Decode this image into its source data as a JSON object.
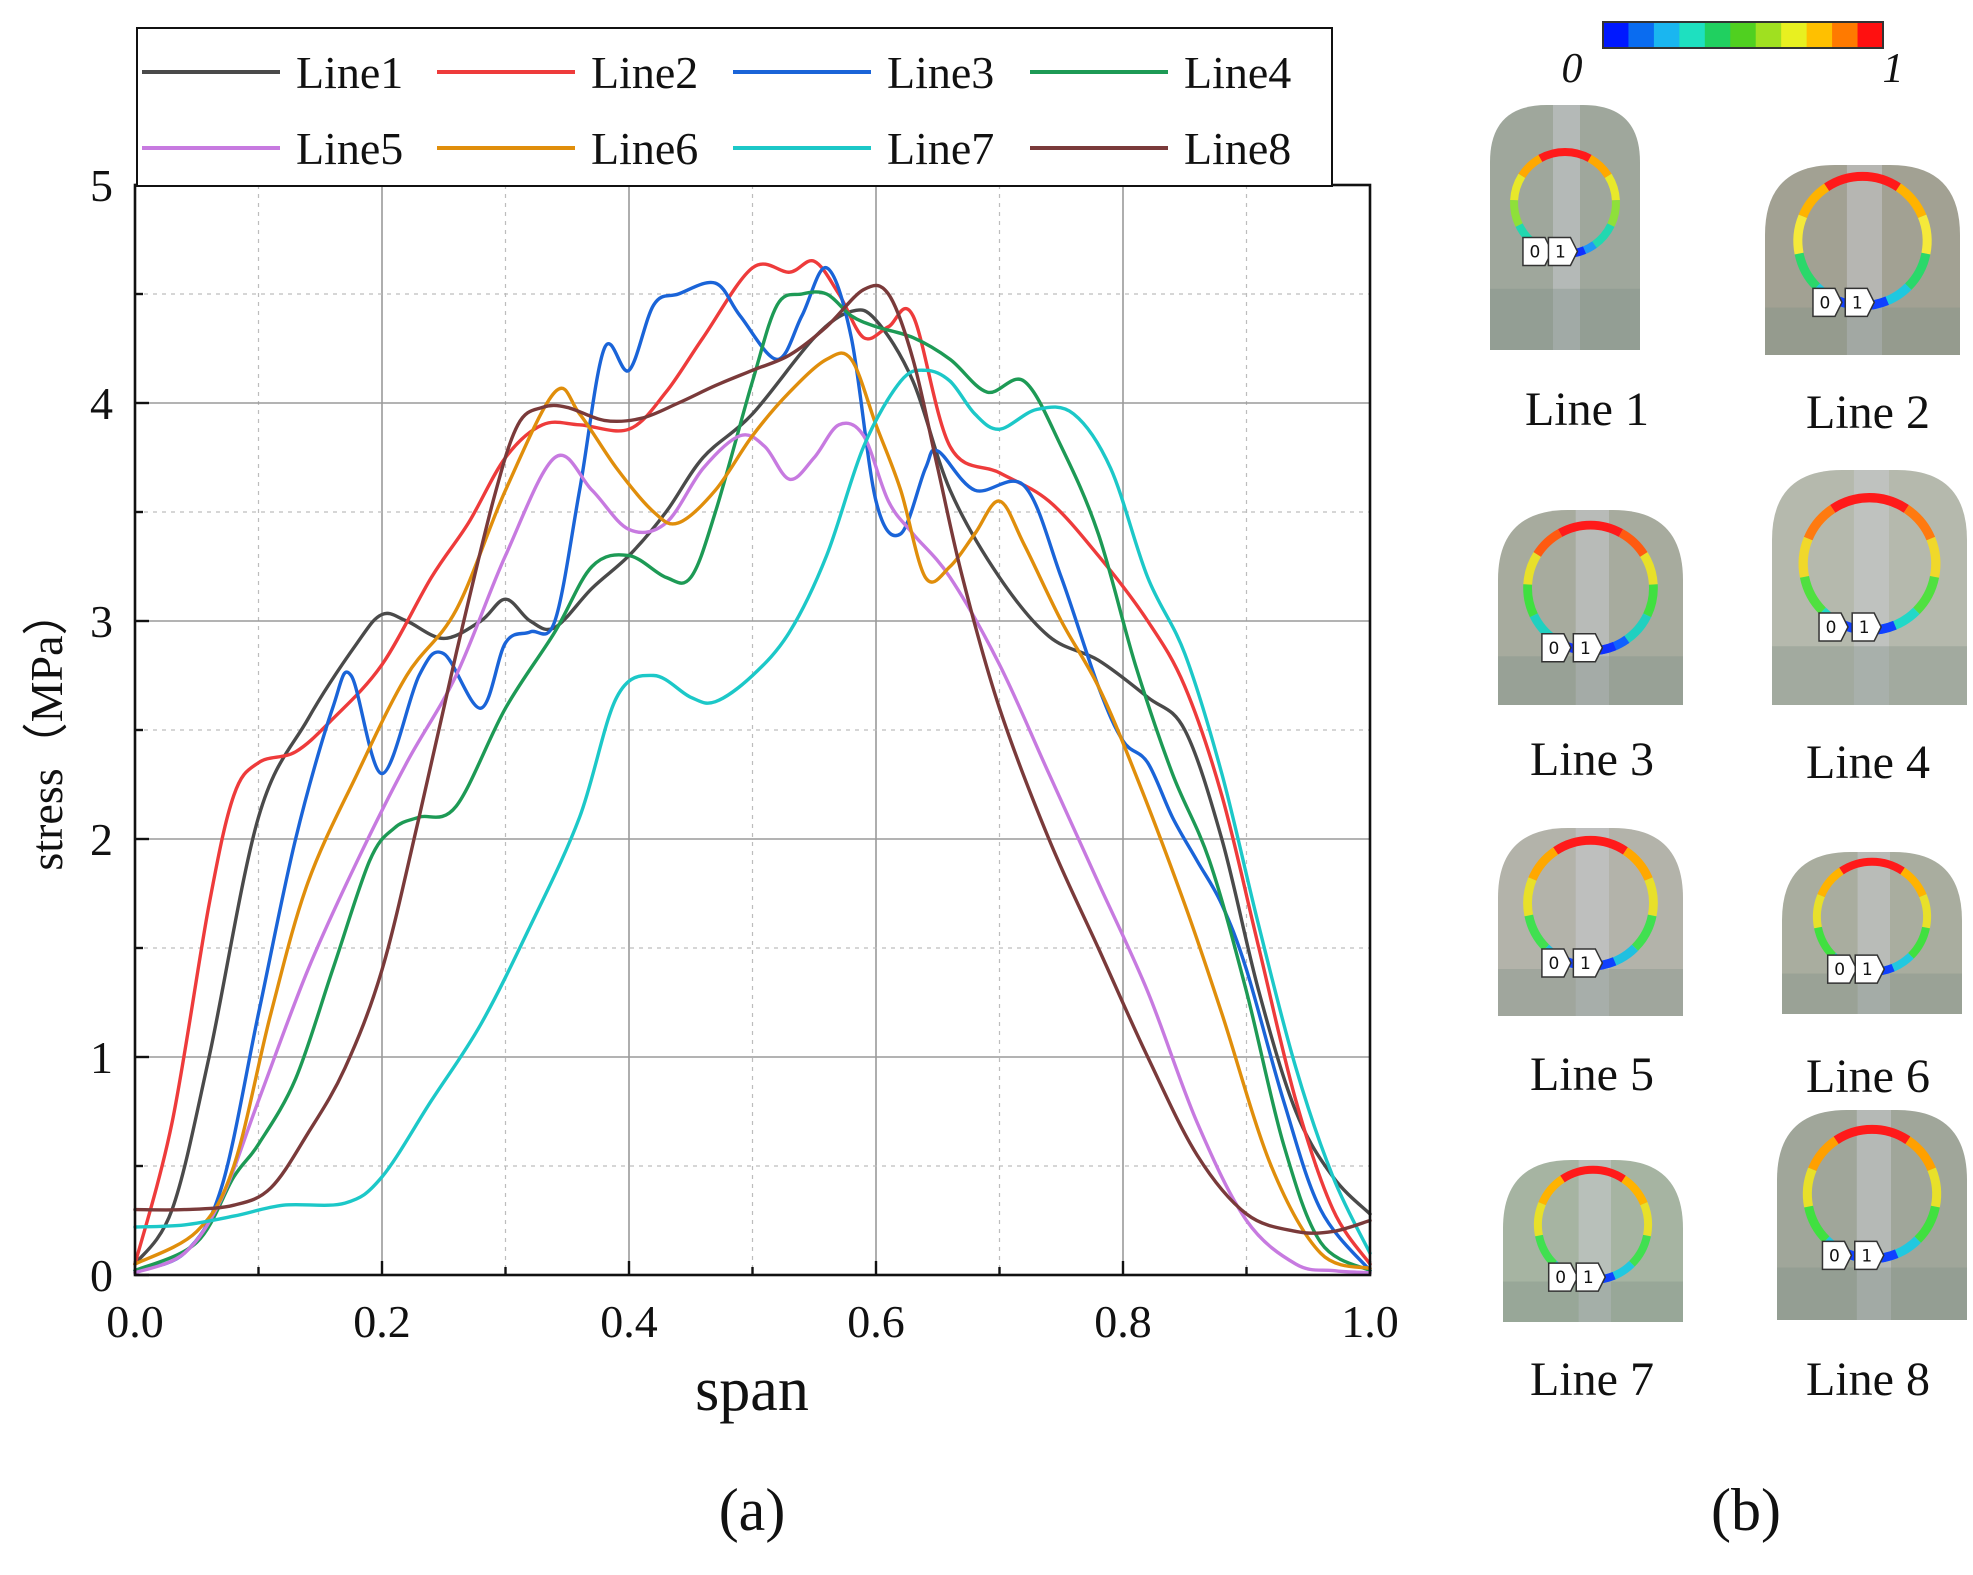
{
  "figure": {
    "panel_a_label": "(a)",
    "panel_b_label": "(b)"
  },
  "chart_data": {
    "type": "line",
    "xlabel": "span",
    "ylabel": "stress（MPa）",
    "xlim": [
      0.0,
      1.0
    ],
    "ylim": [
      0,
      5
    ],
    "xticks": [
      "0.0",
      "0.2",
      "0.4",
      "0.6",
      "0.8",
      "1.0"
    ],
    "yticks": [
      "0",
      "1",
      "2",
      "3",
      "4",
      "5"
    ],
    "grid": true,
    "legend_position": "top",
    "series": [
      {
        "name": "Line1",
        "color": "#4a4a4a",
        "x": [
          0,
          0.03,
          0.06,
          0.1,
          0.14,
          0.18,
          0.2,
          0.22,
          0.25,
          0.28,
          0.3,
          0.32,
          0.34,
          0.37,
          0.4,
          0.43,
          0.46,
          0.5,
          0.55,
          0.58,
          0.6,
          0.63,
          0.66,
          0.7,
          0.74,
          0.78,
          0.82,
          0.85,
          0.88,
          0.91,
          0.94,
          0.97,
          1.0
        ],
        "y": [
          0.05,
          0.3,
          1.0,
          2.1,
          2.55,
          2.9,
          3.03,
          3.0,
          2.92,
          3.0,
          3.1,
          3.0,
          2.97,
          3.15,
          3.3,
          3.5,
          3.75,
          3.95,
          4.3,
          4.42,
          4.38,
          4.1,
          3.6,
          3.2,
          2.93,
          2.82,
          2.65,
          2.5,
          2.0,
          1.3,
          0.75,
          0.45,
          0.28
        ]
      },
      {
        "name": "Line2",
        "color": "#ee3b3b",
        "x": [
          0,
          0.03,
          0.06,
          0.08,
          0.1,
          0.13,
          0.16,
          0.2,
          0.24,
          0.27,
          0.3,
          0.33,
          0.36,
          0.4,
          0.43,
          0.46,
          0.5,
          0.53,
          0.55,
          0.57,
          0.59,
          0.61,
          0.63,
          0.66,
          0.7,
          0.74,
          0.78,
          0.82,
          0.85,
          0.88,
          0.91,
          0.94,
          0.97,
          1.0
        ],
        "y": [
          0.05,
          0.7,
          1.7,
          2.2,
          2.35,
          2.4,
          2.55,
          2.8,
          3.2,
          3.45,
          3.75,
          3.9,
          3.9,
          3.88,
          4.05,
          4.3,
          4.62,
          4.6,
          4.65,
          4.5,
          4.3,
          4.35,
          4.4,
          3.8,
          3.68,
          3.55,
          3.3,
          3.0,
          2.7,
          2.2,
          1.5,
          0.8,
          0.3,
          0.05
        ]
      },
      {
        "name": "Line3",
        "color": "#1a64d8",
        "x": [
          0,
          0.04,
          0.07,
          0.1,
          0.13,
          0.16,
          0.175,
          0.2,
          0.23,
          0.25,
          0.28,
          0.3,
          0.32,
          0.34,
          0.36,
          0.38,
          0.4,
          0.42,
          0.44,
          0.47,
          0.49,
          0.52,
          0.54,
          0.56,
          0.58,
          0.6,
          0.62,
          0.64,
          0.65,
          0.68,
          0.72,
          0.75,
          0.78,
          0.8,
          0.82,
          0.84,
          0.86,
          0.88,
          0.9,
          0.93,
          0.96,
          1.0
        ],
        "y": [
          0.02,
          0.1,
          0.4,
          1.2,
          2.0,
          2.6,
          2.75,
          2.3,
          2.75,
          2.85,
          2.6,
          2.9,
          2.95,
          3.0,
          3.6,
          4.25,
          4.15,
          4.45,
          4.5,
          4.55,
          4.4,
          4.2,
          4.4,
          4.62,
          4.3,
          3.55,
          3.4,
          3.7,
          3.78,
          3.6,
          3.62,
          3.2,
          2.7,
          2.45,
          2.35,
          2.1,
          1.9,
          1.7,
          1.4,
          0.8,
          0.3,
          0.02
        ]
      },
      {
        "name": "Line4",
        "color": "#1d9a55",
        "x": [
          0,
          0.05,
          0.08,
          0.1,
          0.13,
          0.16,
          0.19,
          0.21,
          0.23,
          0.26,
          0.3,
          0.34,
          0.37,
          0.4,
          0.43,
          0.45,
          0.47,
          0.5,
          0.52,
          0.54,
          0.56,
          0.58,
          0.6,
          0.63,
          0.66,
          0.69,
          0.72,
          0.75,
          0.78,
          0.81,
          0.84,
          0.87,
          0.9,
          0.93,
          0.96,
          1.0
        ],
        "y": [
          0.02,
          0.15,
          0.45,
          0.6,
          0.9,
          1.4,
          1.9,
          2.05,
          2.1,
          2.15,
          2.6,
          2.95,
          3.25,
          3.3,
          3.2,
          3.2,
          3.5,
          4.1,
          4.45,
          4.5,
          4.5,
          4.4,
          4.35,
          4.3,
          4.2,
          4.05,
          4.1,
          3.8,
          3.4,
          2.8,
          2.3,
          1.9,
          1.3,
          0.6,
          0.15,
          0.02
        ]
      },
      {
        "name": "Line5",
        "color": "#c77ae0",
        "x": [
          0,
          0.04,
          0.07,
          0.1,
          0.14,
          0.18,
          0.22,
          0.26,
          0.3,
          0.34,
          0.37,
          0.4,
          0.43,
          0.46,
          0.49,
          0.51,
          0.53,
          0.55,
          0.57,
          0.59,
          0.61,
          0.63,
          0.66,
          0.7,
          0.74,
          0.78,
          0.82,
          0.86,
          0.9,
          0.94,
          0.97,
          1.0
        ],
        "y": [
          0.01,
          0.1,
          0.35,
          0.8,
          1.4,
          1.9,
          2.35,
          2.75,
          3.3,
          3.75,
          3.6,
          3.42,
          3.45,
          3.7,
          3.85,
          3.8,
          3.65,
          3.75,
          3.9,
          3.85,
          3.55,
          3.4,
          3.2,
          2.8,
          2.3,
          1.8,
          1.3,
          0.7,
          0.25,
          0.05,
          0.02,
          0.01
        ]
      },
      {
        "name": "Line6",
        "color": "#e08e0b",
        "x": [
          0,
          0.05,
          0.08,
          0.11,
          0.14,
          0.18,
          0.22,
          0.26,
          0.3,
          0.34,
          0.36,
          0.39,
          0.42,
          0.44,
          0.47,
          0.5,
          0.53,
          0.56,
          0.58,
          0.6,
          0.62,
          0.64,
          0.66,
          0.68,
          0.7,
          0.72,
          0.75,
          0.78,
          0.81,
          0.85,
          0.88,
          0.92,
          0.96,
          1.0
        ],
        "y": [
          0.05,
          0.2,
          0.5,
          1.2,
          1.8,
          2.3,
          2.75,
          3.05,
          3.6,
          4.05,
          3.95,
          3.7,
          3.5,
          3.45,
          3.6,
          3.85,
          4.05,
          4.2,
          4.2,
          3.9,
          3.6,
          3.2,
          3.25,
          3.4,
          3.55,
          3.35,
          3.0,
          2.7,
          2.3,
          1.7,
          1.2,
          0.5,
          0.1,
          0.03
        ]
      },
      {
        "name": "Line7",
        "color": "#1cc8c8",
        "x": [
          0,
          0.04,
          0.08,
          0.12,
          0.17,
          0.2,
          0.24,
          0.28,
          0.32,
          0.36,
          0.39,
          0.42,
          0.45,
          0.47,
          0.5,
          0.53,
          0.56,
          0.59,
          0.62,
          0.64,
          0.66,
          0.68,
          0.7,
          0.73,
          0.76,
          0.79,
          0.82,
          0.85,
          0.88,
          0.91,
          0.94,
          0.97,
          1.0
        ],
        "y": [
          0.22,
          0.23,
          0.27,
          0.32,
          0.33,
          0.45,
          0.8,
          1.15,
          1.6,
          2.1,
          2.65,
          2.75,
          2.65,
          2.63,
          2.75,
          2.95,
          3.3,
          3.8,
          4.1,
          4.15,
          4.1,
          3.95,
          3.88,
          3.97,
          3.95,
          3.7,
          3.2,
          2.85,
          2.3,
          1.6,
          0.95,
          0.45,
          0.1
        ]
      },
      {
        "name": "Line8",
        "color": "#7a3a3a",
        "x": [
          0,
          0.04,
          0.08,
          0.11,
          0.14,
          0.17,
          0.2,
          0.23,
          0.26,
          0.29,
          0.31,
          0.33,
          0.35,
          0.38,
          0.41,
          0.44,
          0.47,
          0.5,
          0.53,
          0.56,
          0.59,
          0.61,
          0.63,
          0.65,
          0.67,
          0.7,
          0.74,
          0.78,
          0.82,
          0.86,
          0.9,
          0.94,
          0.97,
          1.0
        ],
        "y": [
          0.3,
          0.3,
          0.32,
          0.4,
          0.65,
          0.95,
          1.4,
          2.1,
          2.85,
          3.55,
          3.9,
          3.98,
          3.98,
          3.92,
          3.93,
          4.0,
          4.08,
          4.15,
          4.22,
          4.35,
          4.52,
          4.5,
          4.2,
          3.7,
          3.2,
          2.6,
          2.0,
          1.5,
          1.0,
          0.55,
          0.28,
          0.2,
          0.2,
          0.25
        ]
      }
    ]
  },
  "panel_b": {
    "colorbar": {
      "min_label": "0",
      "max_label": "1",
      "colors": [
        "#0018ff",
        "#0a6cf0",
        "#1ab6f0",
        "#1ee0c0",
        "#20d060",
        "#50d020",
        "#a0e020",
        "#e8f020",
        "#ffc000",
        "#ff7a00",
        "#ff1010"
      ]
    },
    "marker_start_text": "0",
    "marker_end_text": "1",
    "thumbnails": [
      {
        "label": "Line 1",
        "bg": "#9fa79c",
        "ring": [
          "#ff1a1a",
          "#ffa800",
          "#e8e82a",
          "#8ee03a",
          "#22d8b0",
          "#2098f5",
          "#1030ff"
        ]
      },
      {
        "label": "Line 2",
        "bg": "#a2a193",
        "ring": [
          "#ff1a1a",
          "#ffb300",
          "#f5e93a",
          "#2ad86a",
          "#1fc8e0",
          "#1040ff"
        ]
      },
      {
        "label": "Line 3",
        "bg": "#a7ab9e",
        "ring": [
          "#ff1a1a",
          "#ff5a10",
          "#e8e02a",
          "#40e040",
          "#20d0c0",
          "#1060ff",
          "#1030ff"
        ]
      },
      {
        "label": "Line 4",
        "bg": "#b5b9ad",
        "ring": [
          "#ff1a1a",
          "#ff7a10",
          "#f0d82a",
          "#50e040",
          "#22d8c8",
          "#1040ff"
        ]
      },
      {
        "label": "Line 5",
        "bg": "#b3b3aa",
        "ring": [
          "#ff1a1a",
          "#ffa800",
          "#e8e02a",
          "#40e050",
          "#20c0e0",
          "#1040ff"
        ]
      },
      {
        "label": "Line 6",
        "bg": "#a9ad9f",
        "ring": [
          "#ff1a1a",
          "#ffb300",
          "#e8e02a",
          "#40e040",
          "#22c8e0",
          "#1040ff"
        ]
      },
      {
        "label": "Line 7",
        "bg": "#a6b4a2",
        "ring": [
          "#ff1a1a",
          "#ffb300",
          "#e8e02a",
          "#40e050",
          "#20c8e0",
          "#1040ff"
        ]
      },
      {
        "label": "Line 8",
        "bg": "#a0a69a",
        "ring": [
          "#ff1a1a",
          "#ffa000",
          "#e8e02a",
          "#40e040",
          "#20c8e0",
          "#1040ff"
        ]
      }
    ]
  }
}
